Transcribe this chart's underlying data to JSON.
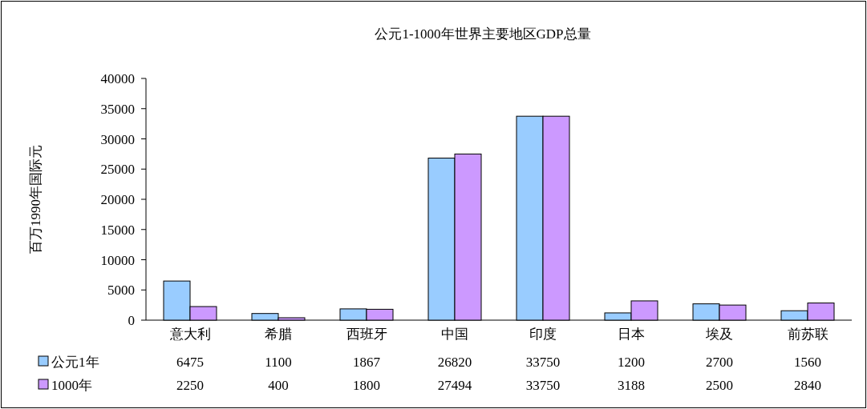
{
  "chart_data": {
    "type": "bar",
    "title": "公元1-1000年世界主要地区GDP总量",
    "ylabel": "百万1990年国际元",
    "categories": [
      "意大利",
      "希腊",
      "西班牙",
      "中国",
      "印度",
      "日本",
      "埃及",
      "前苏联"
    ],
    "series": [
      {
        "name": "公元1年",
        "color": "#99ccff",
        "values": [
          6475,
          1100,
          1867,
          26820,
          33750,
          1200,
          2700,
          1560
        ]
      },
      {
        "name": "1000年",
        "color": "#cc99ff",
        "values": [
          2250,
          400,
          1800,
          27494,
          33750,
          3188,
          2500,
          2840
        ]
      }
    ],
    "ylim": [
      0,
      40000
    ],
    "yticks": [
      0,
      5000,
      10000,
      15000,
      20000,
      25000,
      30000,
      35000,
      40000
    ],
    "grid": false,
    "legend": "bottom left",
    "data_labels": true
  }
}
